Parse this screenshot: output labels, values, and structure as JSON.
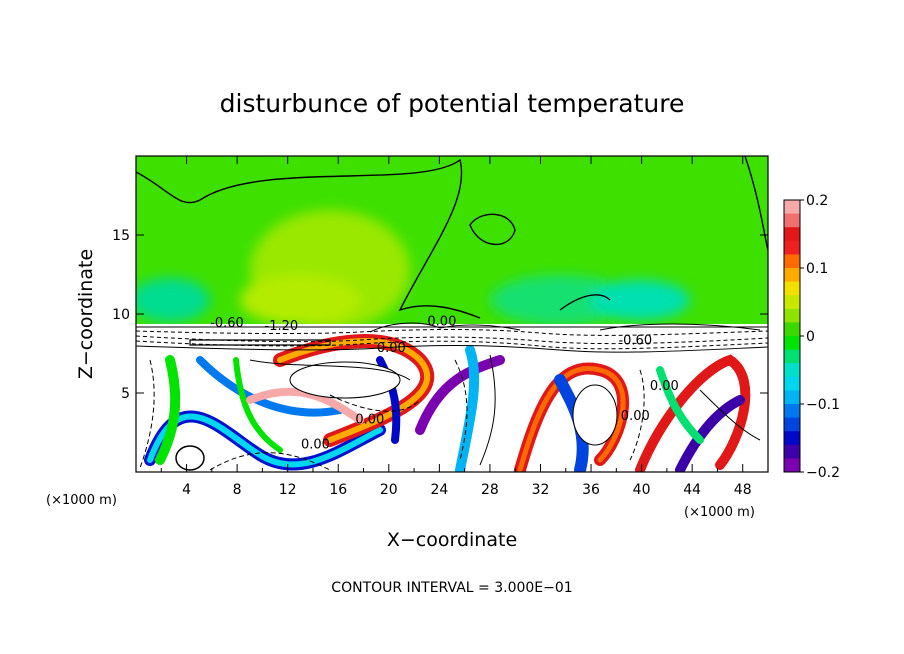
{
  "chart_data": {
    "type": "heatmap",
    "title": "disturbunce of potential temperature",
    "xlabel": "X−coordinate",
    "ylabel": "Z−coordinate",
    "x_unit": "(×1000 m)",
    "y_unit": "(×1000 m)",
    "xlim": [
      0,
      50
    ],
    "ylim": [
      0,
      20
    ],
    "x_ticks": [
      4,
      8,
      12,
      16,
      20,
      24,
      28,
      32,
      36,
      40,
      44,
      48
    ],
    "x_tick_labels": [
      "4",
      "8",
      "12",
      "16",
      "20",
      "24",
      "28",
      "32",
      "36",
      "40",
      "44",
      "48"
    ],
    "y_ticks": [
      5,
      10,
      15
    ],
    "y_tick_labels": [
      "5",
      "10",
      "15"
    ],
    "colorbar": {
      "min": -0.2,
      "max": 0.2,
      "ticks": [
        0.2,
        0.1,
        0,
        -0.1,
        -0.2
      ],
      "tick_labels": [
        "0.2",
        "0.1",
        "0",
        "−0.1",
        "−0.2"
      ],
      "colors": [
        "#f7a8a8",
        "#f07070",
        "#e01818",
        "#ee2020",
        "#ff6a00",
        "#ffaa00",
        "#f2e000",
        "#c8e800",
        "#8ee400",
        "#3cd800",
        "#00e400",
        "#00e070",
        "#00e0c8",
        "#00d6ee",
        "#00b4f4",
        "#0078ee",
        "#0044e0",
        "#0008c8",
        "#3c00a8",
        "#7a00b0"
      ]
    },
    "contour_labels": [
      {
        "text": "-0.60",
        "x": 7.2,
        "z": 9.5
      },
      {
        "text": "-1.20",
        "x": 11.5,
        "z": 9.3
      },
      {
        "text": "0.00",
        "x": 24.2,
        "z": 9.6
      },
      {
        "text": "0.00",
        "x": 20.2,
        "z": 7.9
      },
      {
        "text": "-0.60",
        "x": 39.5,
        "z": 8.4
      },
      {
        "text": "0.00",
        "x": 18.5,
        "z": 3.4
      },
      {
        "text": "0.00",
        "x": 14.2,
        "z": 1.8
      },
      {
        "text": "0.00",
        "x": 39.5,
        "z": 3.6
      },
      {
        "text": "0.00",
        "x": 41.8,
        "z": 5.5
      }
    ],
    "grid": false
  },
  "contour_interval": "CONTOUR INTERVAL = 3.000E−01"
}
